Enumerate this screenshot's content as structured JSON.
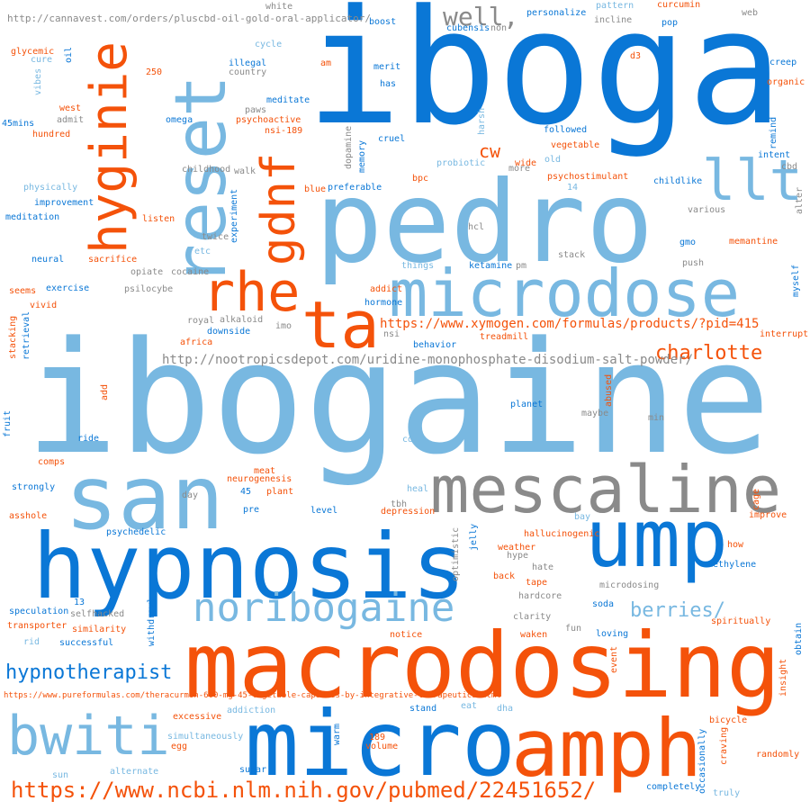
{
  "colors": {
    "sky": "#78b8e1",
    "blue": "#0a77d6",
    "orange": "#f4520a",
    "gray": "#8a8a8a"
  },
  "words": {
    "ibogaine": "ibogaine",
    "iboga": "iboga",
    "pedro": "pedro",
    "macrodosing": "macrodosing",
    "hypnosis": "hypnosis",
    "micro": "micro",
    "amph": "amph",
    "mescaline": "mescaline",
    "san": "san",
    "ump": "ump",
    "microdose": "microdose",
    "noribogaine": "noribogaine",
    "bwiti": "bwiti",
    "reset": "reset",
    "hyginie": "hyginie",
    "gdnf": "gdnf",
    "rhe": "rhe",
    "ta": "ta",
    "llt": "llt",
    "well": "well,",
    "cw": "cw",
    "charlotte": "charlotte",
    "hypnotherapist": "hypnotherapist",
    "berries": "berries/",
    "url_ncbi": "https://www.ncbi.nlm.nih.gov/pubmed/22451652/",
    "url_nootropics": "http://nootropicsdepot.com/uridine-monophosphate-disodium-salt-powder/",
    "url_xymogen": "https://www.xymogen.com/formulas/products/?pid=415",
    "url_cannavest": "http://cannavest.com/orders/pluscbd-oil-gold-oral-applicator/",
    "url_pureformulas": "https://www.pureformulas.com/theracurmin-600-mg-45-vegetable-capsules-by-integrative-therapeutics.html",
    "boost": "boost",
    "cubensis": "cubensis",
    "non": "non",
    "personalize": "personalize",
    "pattern": "pattern",
    "incline": "incline",
    "curcumin": "curcumin",
    "web": "web",
    "white": "white",
    "pop": "pop",
    "d3": "d3",
    "creep": "creep",
    "organic": "organic",
    "glycemic": "glycemic",
    "cure": "cure",
    "oil": "oil",
    "vibes": "vibes",
    "cycle": "cycle",
    "illegal": "illegal",
    "country": "country",
    "am": "am",
    "n250": "250",
    "merit": "merit",
    "has": "has",
    "meditate": "meditate",
    "paws": "paws",
    "west": "west",
    "admit": "admit",
    "mins45": "45mins",
    "hundred": "hundred",
    "omega": "omega",
    "psychoactive": "psychoactive",
    "nsi189": "nsi-189",
    "harsh": "harsh",
    "followed": "followed",
    "remind": "remind",
    "intent": "intent",
    "cbd": "cbd",
    "cruel": "cruel",
    "dopamine": "dopamine",
    "memory": "memory",
    "vegetable": "vegetable",
    "probiotic": "probiotic",
    "wide": "wide",
    "old": "old",
    "more": "more",
    "childhood": "childhood",
    "walk": "walk",
    "psychostimulant": "psychostimulant",
    "childlike": "childlike",
    "alter": "alter",
    "physically": "physically",
    "blue": "blue",
    "preferable": "preferable",
    "bpc": "bpc",
    "n14": "14",
    "improvement": "improvement",
    "experiment": "experiment",
    "various": "various",
    "meditation": "meditation",
    "listen": "listen",
    "twice": "twice",
    "hcl": "hcl",
    "gmo": "gmo",
    "memantine": "memantine",
    "etc": "etc",
    "myself": "myself",
    "neural": "neural",
    "sacrifice": "sacrifice",
    "stack": "stack",
    "push": "push",
    "opiate": "opiate",
    "cocaine": "cocaine",
    "things": "things",
    "ketamine": "ketamine",
    "pm": "pm",
    "seems": "seems",
    "exercise": "exercise",
    "psilocybe": "psilocybe",
    "addict": "addict",
    "vivid": "vivid",
    "hormone": "hormone",
    "royal": "royal",
    "alkaloid": "alkaloid",
    "imo": "imo",
    "downside": "downside",
    "nsi": "nsi",
    "stacking": "stacking",
    "retrieval": "retrieval",
    "africa": "africa",
    "treadmill": "treadmill",
    "interrupt": "interrupt",
    "behavior": "behavior",
    "add": "add",
    "abused": "abused",
    "fruit": "fruit",
    "planet": "planet",
    "maybe": "maybe",
    "min": "min",
    "ride": "ride",
    "cdp": "cdp",
    "comps": "comps",
    "meat": "meat",
    "neurogenesis": "neurogenesis",
    "strongly": "strongly",
    "n45": "45",
    "plant": "plant",
    "heal": "heal",
    "day": "day",
    "tbh": "tbh",
    "cage": "cage",
    "asshole": "asshole",
    "pre": "pre",
    "level": "level",
    "depression": "depression",
    "bay": "bay",
    "improve": "improve",
    "optimistic": "optimistic",
    "jelly": "jelly",
    "hallucinogenic": "hallucinogenic",
    "psychedelic": "psychedelic",
    "weather": "weather",
    "hype": "hype",
    "how": "how",
    "back": "back",
    "tape": "tape",
    "hate": "hate",
    "methylene": "methylene",
    "microdosing": "microdosing",
    "speculation": "speculation",
    "n13": "13",
    "selfhacked": "selfhacked",
    "hardcore": "hardcore",
    "soda": "soda",
    "clarity": "clarity",
    "transporter": "transporter",
    "similarity": "similarity",
    "spiritually": "spiritually",
    "withdrawl": "withdrawl",
    "fun": "fun",
    "obtain": "obtain",
    "rid": "rid",
    "successful": "successful",
    "notice": "notice",
    "waken": "waken",
    "loving": "loving",
    "event": "event",
    "insight": "insight",
    "addiction": "addiction",
    "eat": "eat",
    "dha": "dha",
    "stand": "stand",
    "bicycle": "bicycle",
    "excessive": "excessive",
    "warm": "warm",
    "craving": "craving",
    "simultaneously": "simultaneously",
    "egg": "egg",
    "n189": "189",
    "volume": "volume",
    "occasionally": "occasionally",
    "randomly": "randomly",
    "sun": "sun",
    "alternate": "alternate",
    "sugar": "sugar",
    "completely": "completely",
    "truly": "truly"
  }
}
